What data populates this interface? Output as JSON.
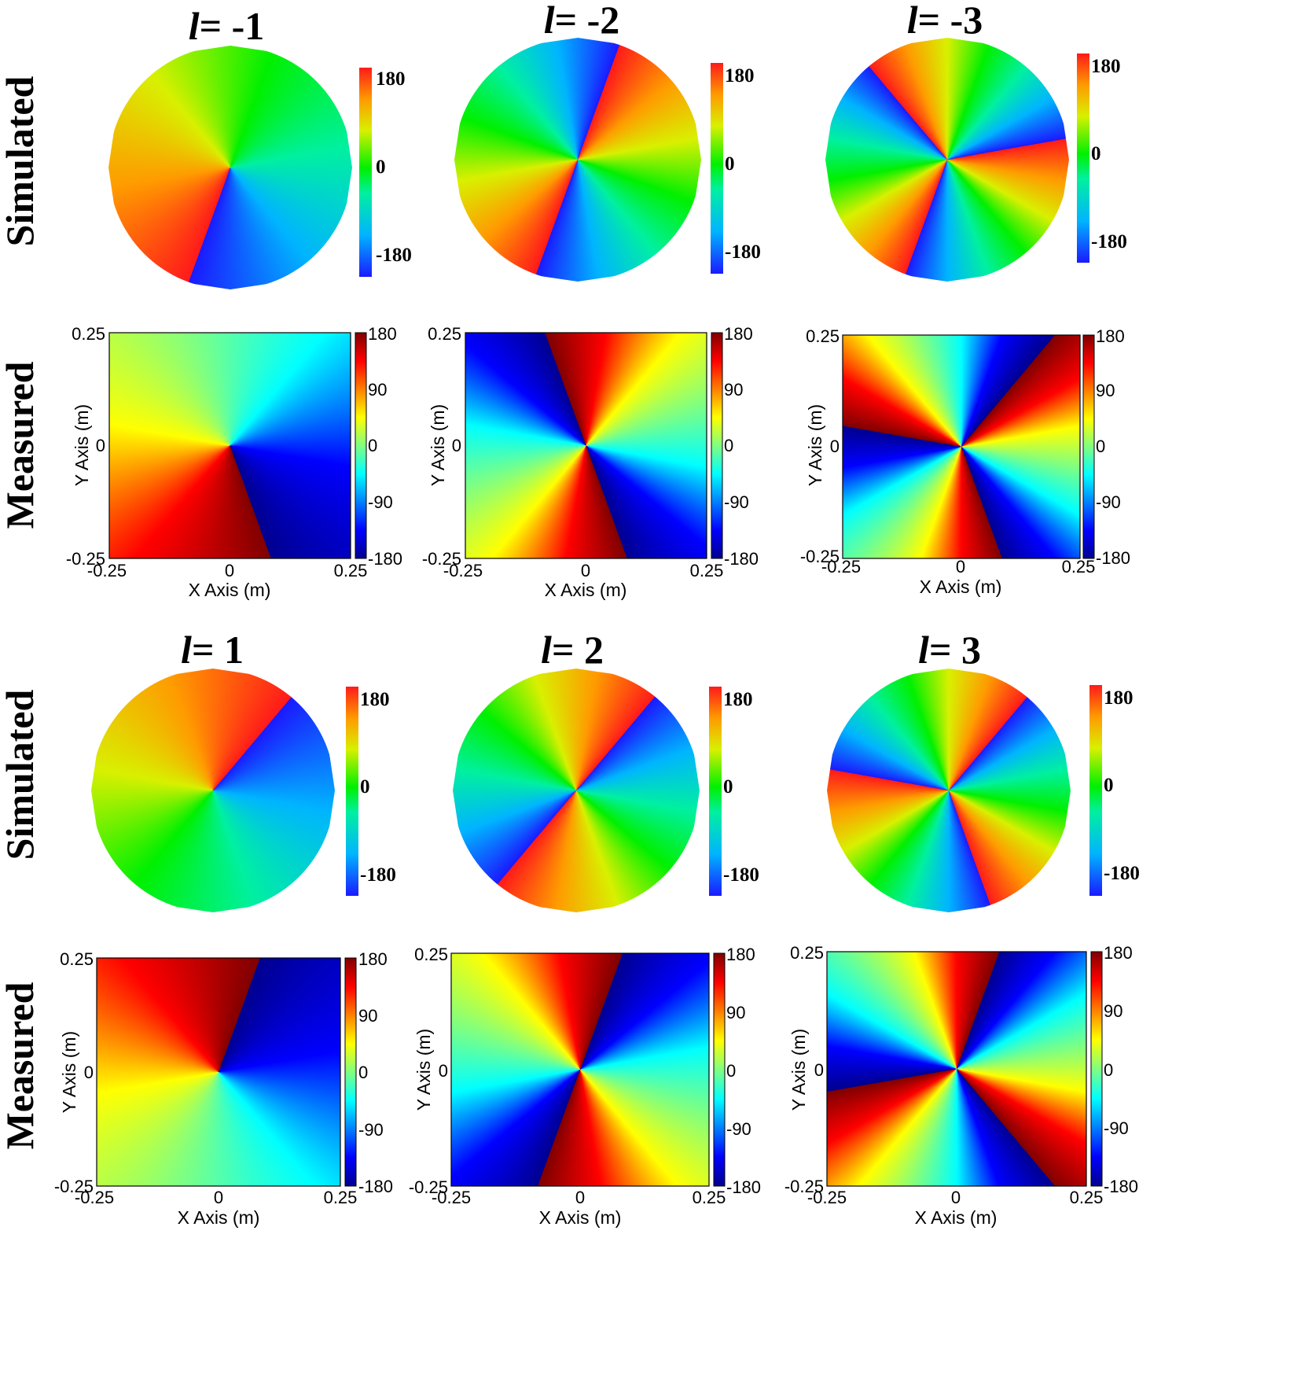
{
  "colors": {
    "simulated_colormap": "hsv-like (blue → cyan → green → yellow → red)",
    "measured_colormap": "jet (dark blue → blue → cyan → yellow → red → dark red)",
    "background": "#ffffff"
  },
  "row_labels": {
    "simulated": "Simulated",
    "measured": "Measured"
  },
  "columns": [
    {
      "l_symbol": "l",
      "l_text": "= -1",
      "l_value": -1
    },
    {
      "l_symbol": "l",
      "l_text": "= -2",
      "l_value": -2
    },
    {
      "l_symbol": "l",
      "l_text": "= -3",
      "l_value": -3
    },
    {
      "l_symbol": "l",
      "l_text": "= 1",
      "l_value": 1
    },
    {
      "l_symbol": "l",
      "l_text": "= 2",
      "l_value": 2
    },
    {
      "l_symbol": "l",
      "l_text": "= 3",
      "l_value": 3
    }
  ],
  "chart_data": [
    {
      "type": "heatmap",
      "kind": "simulated",
      "topological_charge": -1,
      "colorbar_ticks": [
        "180",
        "0",
        "-180"
      ],
      "colorbar_range": [
        -180,
        180
      ]
    },
    {
      "type": "heatmap",
      "kind": "simulated",
      "topological_charge": -2,
      "colorbar_ticks": [
        "180",
        "0",
        "-180"
      ],
      "colorbar_range": [
        -180,
        180
      ]
    },
    {
      "type": "heatmap",
      "kind": "simulated",
      "topological_charge": -3,
      "colorbar_ticks": [
        "180",
        "0",
        "-180"
      ],
      "colorbar_range": [
        -180,
        180
      ]
    },
    {
      "type": "heatmap",
      "kind": "measured",
      "topological_charge": -1,
      "xlabel": "X Axis (m)",
      "ylabel": "Y Axis (m)",
      "xlim": [
        -0.25,
        0.25
      ],
      "ylim": [
        -0.25,
        0.25
      ],
      "x_ticks": [
        "-0.25",
        "0",
        "0.25"
      ],
      "y_ticks": [
        "0.25",
        "0",
        "-0.25"
      ],
      "colorbar_ticks": [
        "180",
        "90",
        "0",
        "-90",
        "-180"
      ],
      "colorbar_range": [
        -180,
        180
      ]
    },
    {
      "type": "heatmap",
      "kind": "measured",
      "topological_charge": -2,
      "xlabel": "X Axis (m)",
      "ylabel": "Y Axis (m)",
      "xlim": [
        -0.25,
        0.25
      ],
      "ylim": [
        -0.25,
        0.25
      ],
      "x_ticks": [
        "-0.25",
        "0",
        "0.25"
      ],
      "y_ticks": [
        "0.25",
        "0",
        "-0.25"
      ],
      "colorbar_ticks": [
        "180",
        "90",
        "0",
        "-90",
        "-180"
      ],
      "colorbar_range": [
        -180,
        180
      ]
    },
    {
      "type": "heatmap",
      "kind": "measured",
      "topological_charge": -3,
      "xlabel": "X Axis (m)",
      "ylabel": "Y Axis (m)",
      "xlim": [
        -0.25,
        0.25
      ],
      "ylim": [
        -0.25,
        0.25
      ],
      "x_ticks": [
        "-0.25",
        "0",
        "0.25"
      ],
      "y_ticks": [
        "0.25",
        "0",
        "-0.25"
      ],
      "colorbar_ticks": [
        "180",
        "90",
        "0",
        "-90",
        "-180"
      ],
      "colorbar_range": [
        -180,
        180
      ]
    },
    {
      "type": "heatmap",
      "kind": "simulated",
      "topological_charge": 1,
      "colorbar_ticks": [
        "180",
        "0",
        "-180"
      ],
      "colorbar_range": [
        -180,
        180
      ]
    },
    {
      "type": "heatmap",
      "kind": "simulated",
      "topological_charge": 2,
      "colorbar_ticks": [
        "180",
        "0",
        "-180"
      ],
      "colorbar_range": [
        -180,
        180
      ]
    },
    {
      "type": "heatmap",
      "kind": "simulated",
      "topological_charge": 3,
      "colorbar_ticks": [
        "180",
        "0",
        "-180"
      ],
      "colorbar_range": [
        -180,
        180
      ]
    },
    {
      "type": "heatmap",
      "kind": "measured",
      "topological_charge": 1,
      "xlabel": "X Axis (m)",
      "ylabel": "Y Axis (m)",
      "xlim": [
        -0.25,
        0.25
      ],
      "ylim": [
        -0.25,
        0.25
      ],
      "x_ticks": [
        "-0.25",
        "0",
        "0.25"
      ],
      "y_ticks": [
        "0.25",
        "0",
        "-0.25"
      ],
      "colorbar_ticks": [
        "180",
        "90",
        "0",
        "-90",
        "-180"
      ],
      "colorbar_range": [
        -180,
        180
      ]
    },
    {
      "type": "heatmap",
      "kind": "measured",
      "topological_charge": 2,
      "xlabel": "X Axis (m)",
      "ylabel": "Y Axis (m)",
      "xlim": [
        -0.25,
        0.25
      ],
      "ylim": [
        -0.25,
        0.25
      ],
      "x_ticks": [
        "-0.25",
        "0",
        "0.25"
      ],
      "y_ticks": [
        "0.25",
        "0",
        "-0.25"
      ],
      "colorbar_ticks": [
        "180",
        "90",
        "0",
        "-90",
        "-180"
      ],
      "colorbar_range": [
        -180,
        180
      ]
    },
    {
      "type": "heatmap",
      "kind": "measured",
      "topological_charge": 3,
      "xlabel": "X Axis (m)",
      "ylabel": "Y Axis (m)",
      "xlim": [
        -0.25,
        0.25
      ],
      "ylim": [
        -0.25,
        0.25
      ],
      "x_ticks": [
        "-0.25",
        "0",
        "0.25"
      ],
      "y_ticks": [
        "0.25",
        "0",
        "-0.25"
      ],
      "colorbar_ticks": [
        "180",
        "90",
        "0",
        "-90",
        "-180"
      ],
      "colorbar_range": [
        -180,
        180
      ]
    }
  ]
}
